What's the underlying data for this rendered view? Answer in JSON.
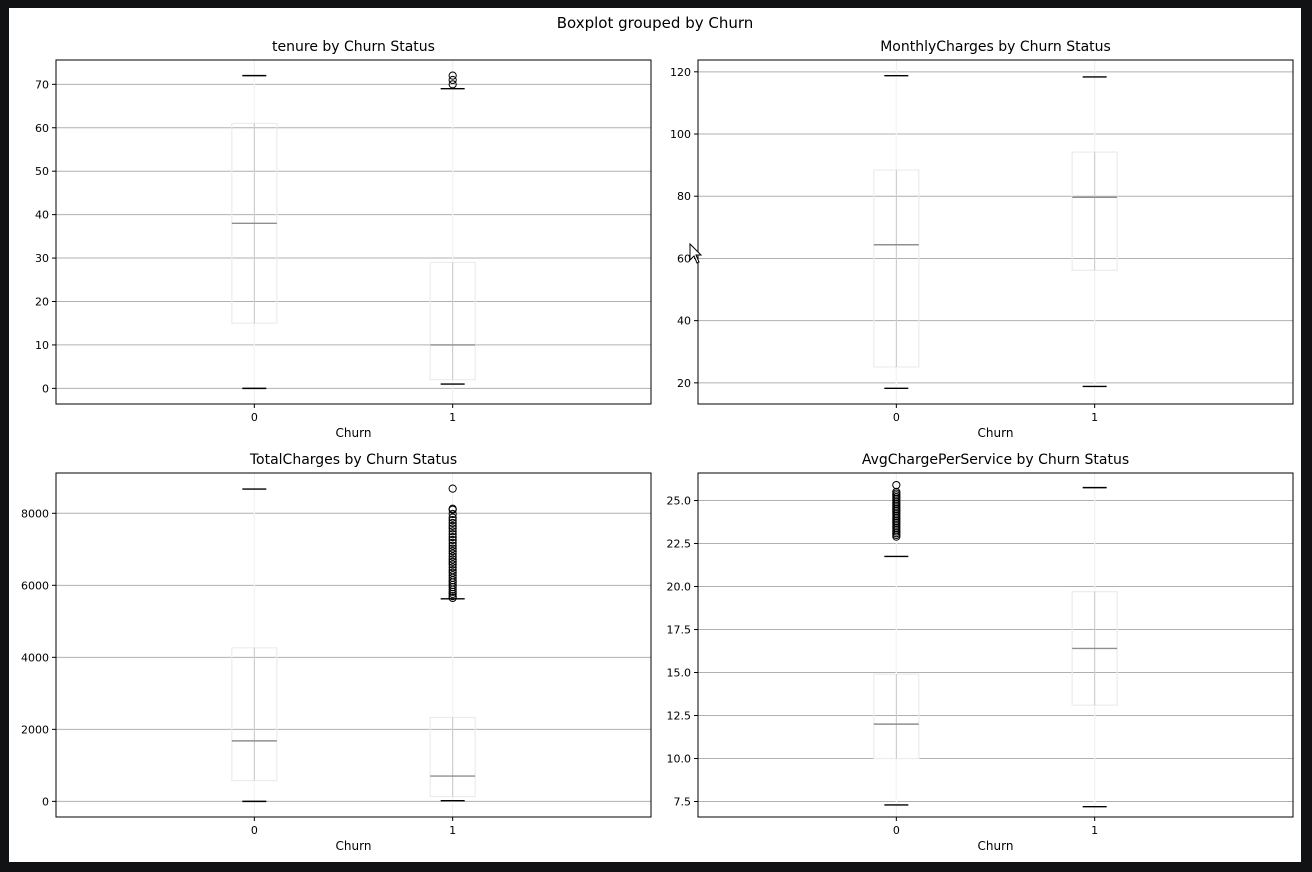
{
  "window": {
    "background": "#111214"
  },
  "figure": {
    "title": "Boxplot grouped by Churn"
  },
  "chart_data": [
    {
      "type": "boxplot",
      "title": "tenure by Churn Status",
      "xlabel": "Churn",
      "ylabel": "",
      "categories": [
        "0",
        "1"
      ],
      "ylim": [
        -3.6,
        75.6
      ],
      "yticks": [
        0,
        10,
        20,
        30,
        40,
        50,
        60,
        70
      ],
      "yticklabels": [
        "0",
        "10",
        "20",
        "30",
        "40",
        "50",
        "60",
        "70"
      ],
      "grid": true,
      "boxes": [
        {
          "category": "0",
          "whislo": 0,
          "q1": 15,
          "median": 38,
          "q3": 61,
          "whishi": 72,
          "fliers": []
        },
        {
          "category": "1",
          "whislo": 1,
          "q1": 2,
          "median": 10,
          "q3": 29,
          "whishi": 69,
          "fliers": [
            70,
            71,
            72
          ]
        }
      ]
    },
    {
      "type": "boxplot",
      "title": "MonthlyCharges by Churn Status",
      "xlabel": "Churn",
      "ylabel": "",
      "categories": [
        "0",
        "1"
      ],
      "ylim": [
        13.2,
        123.8
      ],
      "yticks": [
        20,
        40,
        60,
        80,
        100,
        120
      ],
      "yticklabels": [
        "20",
        "40",
        "60",
        "80",
        "100",
        "120"
      ],
      "grid": true,
      "boxes": [
        {
          "category": "0",
          "whislo": 18.25,
          "q1": 25.1,
          "median": 64.4,
          "q3": 88.4,
          "whishi": 118.75,
          "fliers": []
        },
        {
          "category": "1",
          "whislo": 18.85,
          "q1": 56.2,
          "median": 79.65,
          "q3": 94.2,
          "whishi": 118.35,
          "fliers": []
        }
      ]
    },
    {
      "type": "boxplot",
      "title": "TotalCharges by Churn Status",
      "xlabel": "Churn",
      "ylabel": "",
      "categories": [
        "0",
        "1"
      ],
      "ylim": [
        -434,
        9119
      ],
      "yticks": [
        0,
        2000,
        4000,
        6000,
        8000
      ],
      "yticklabels": [
        "0",
        "2000",
        "4000",
        "6000",
        "8000"
      ],
      "grid": true,
      "boxes": [
        {
          "category": "0",
          "whislo": 0,
          "q1": 577,
          "median": 1680,
          "q3": 4265,
          "whishi": 8672,
          "fliers": []
        },
        {
          "category": "1",
          "whislo": 19,
          "q1": 134,
          "median": 704,
          "q3": 2331,
          "whishi": 5624,
          "fliers": [
            5650,
            5700,
            5760,
            5820,
            5880,
            5950,
            6010,
            6080,
            6140,
            6210,
            6280,
            6350,
            6420,
            6500,
            6580,
            6650,
            6720,
            6800,
            6880,
            6950,
            7020,
            7100,
            7180,
            7260,
            7340,
            7420,
            7500,
            7580,
            7650,
            7730,
            7810,
            7880,
            7980,
            8100,
            8127,
            8685
          ]
        }
      ]
    },
    {
      "type": "boxplot",
      "title": "AvgChargePerService by Churn Status",
      "xlabel": "Churn",
      "ylabel": "",
      "categories": [
        "0",
        "1"
      ],
      "ylim": [
        6.6,
        26.6
      ],
      "yticks": [
        7.5,
        10.0,
        12.5,
        15.0,
        17.5,
        20.0,
        22.5,
        25.0
      ],
      "yticklabels": [
        "7.5",
        "10.0",
        "12.5",
        "15.0",
        "17.5",
        "20.0",
        "22.5",
        "25.0"
      ],
      "grid": true,
      "boxes": [
        {
          "category": "0",
          "whislo": 7.3,
          "q1": 10.0,
          "median": 12.0,
          "q3": 14.9,
          "whishi": 21.75,
          "fliers": [
            22.9,
            23.0,
            23.1,
            23.2,
            23.3,
            23.4,
            23.5,
            23.6,
            23.7,
            23.8,
            23.9,
            24.0,
            24.1,
            24.2,
            24.3,
            24.4,
            24.5,
            24.6,
            24.7,
            24.8,
            24.9,
            25.0,
            25.1,
            25.2,
            25.3,
            25.4,
            25.5,
            25.9
          ]
        },
        {
          "category": "1",
          "whislo": 7.2,
          "q1": 13.1,
          "median": 16.4,
          "q3": 19.7,
          "whishi": 25.75,
          "fliers": []
        }
      ]
    }
  ]
}
